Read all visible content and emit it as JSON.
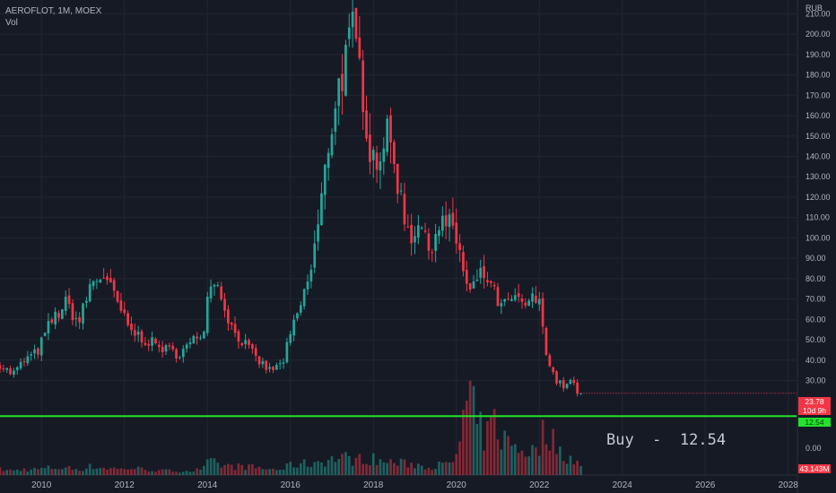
{
  "header": {
    "symbol": "AEROFLOT, 1M, MOEX",
    "volume_label": "Vol"
  },
  "currency": "RUB",
  "price_badge": {
    "price": "23.78",
    "countdown": "10d 9h"
  },
  "level_badge": "12.54",
  "volume_badge": "43.143M",
  "annotation": "Buy  -  12.54",
  "colors": {
    "background": "#161a25",
    "up": "#26a69a",
    "down": "#f23645",
    "level_line": "#22e22a",
    "grid": "#222631"
  },
  "chart_data": {
    "type": "candlestick",
    "interval": "1M",
    "y_unit": "RUB",
    "ylim": [
      10,
      215
    ],
    "y_ticks": [
      "30.00",
      "40.00",
      "50.00",
      "60.00",
      "70.00",
      "80.00",
      "90.00",
      "100.00",
      "110.00",
      "120.00",
      "130.00",
      "140.00",
      "150.00",
      "160.00",
      "170.00",
      "180.00",
      "190.00",
      "200.00",
      "210.00"
    ],
    "volume_tick": "0.00",
    "x_ticks": [
      "2010",
      "2012",
      "2014",
      "2016",
      "2018",
      "2020",
      "2022",
      "2024",
      "2026",
      "2028"
    ],
    "x_tick_years": [
      2010,
      2012,
      2014,
      2016,
      2018,
      2020,
      2022,
      2024,
      2026,
      2028
    ],
    "xlim": [
      2009.0,
      2028.2
    ],
    "current_price": 23.78,
    "horizontal_level": 12.54,
    "anchors": [
      [
        2009.0,
        38,
        0.4
      ],
      [
        2009.3,
        33,
        0.3
      ],
      [
        2009.6,
        40,
        0.4
      ],
      [
        2009.9,
        44,
        0.4
      ],
      [
        2010.2,
        58,
        0.5
      ],
      [
        2010.6,
        68,
        0.5
      ],
      [
        2010.9,
        58,
        0.4
      ],
      [
        2011.2,
        78,
        0.6
      ],
      [
        2011.5,
        82,
        0.5
      ],
      [
        2011.7,
        73,
        0.5
      ],
      [
        2011.9,
        65,
        0.4
      ],
      [
        2012.1,
        55,
        0.5
      ],
      [
        2012.5,
        50,
        0.4
      ],
      [
        2012.9,
        46,
        0.3
      ],
      [
        2013.3,
        43,
        0.3
      ],
      [
        2013.6,
        48,
        0.3
      ],
      [
        2013.9,
        55,
        0.4
      ],
      [
        2014.0,
        70,
        0.8
      ],
      [
        2014.1,
        83,
        0.9
      ],
      [
        2014.3,
        74,
        0.7
      ],
      [
        2014.6,
        55,
        0.6
      ],
      [
        2014.9,
        48,
        0.6
      ],
      [
        2015.2,
        40,
        0.5
      ],
      [
        2015.5,
        35,
        0.4
      ],
      [
        2015.8,
        38,
        0.4
      ],
      [
        2016.0,
        52,
        0.7
      ],
      [
        2016.3,
        70,
        0.8
      ],
      [
        2016.5,
        85,
        0.8
      ],
      [
        2016.7,
        110,
        1.0
      ],
      [
        2016.9,
        143,
        1.0
      ],
      [
        2017.1,
        170,
        1.2
      ],
      [
        2017.3,
        185,
        1.2
      ],
      [
        2017.5,
        200,
        1.1
      ],
      [
        2017.7,
        180,
        1.1
      ],
      [
        2017.9,
        145,
        1.2
      ],
      [
        2018.1,
        138,
        1.0
      ],
      [
        2018.3,
        152,
        0.9
      ],
      [
        2018.5,
        138,
        0.9
      ],
      [
        2018.7,
        115,
        0.8
      ],
      [
        2018.9,
        100,
        0.8
      ],
      [
        2019.1,
        110,
        0.7
      ],
      [
        2019.3,
        93,
        0.6
      ],
      [
        2019.6,
        108,
        0.7
      ],
      [
        2019.9,
        105,
        0.7
      ],
      [
        2020.1,
        93,
        2.5
      ],
      [
        2020.2,
        78,
        4.5
      ],
      [
        2020.35,
        72,
        5.0
      ],
      [
        2020.5,
        80,
        3.6
      ],
      [
        2020.7,
        82,
        2.5
      ],
      [
        2020.9,
        73,
        3.8
      ],
      [
        2021.1,
        65,
        2.6
      ],
      [
        2021.3,
        70,
        2.2
      ],
      [
        2021.6,
        67,
        1.8
      ],
      [
        2021.9,
        70,
        1.6
      ],
      [
        2022.0,
        67,
        2.0
      ],
      [
        2022.1,
        56,
        3.0
      ],
      [
        2022.2,
        40,
        3.2
      ],
      [
        2022.4,
        30,
        2.0
      ],
      [
        2022.6,
        27,
        1.4
      ],
      [
        2022.8,
        30,
        1.2
      ],
      [
        2022.9,
        24,
        0.9
      ],
      [
        2023.0,
        23.78,
        0.6
      ]
    ]
  }
}
